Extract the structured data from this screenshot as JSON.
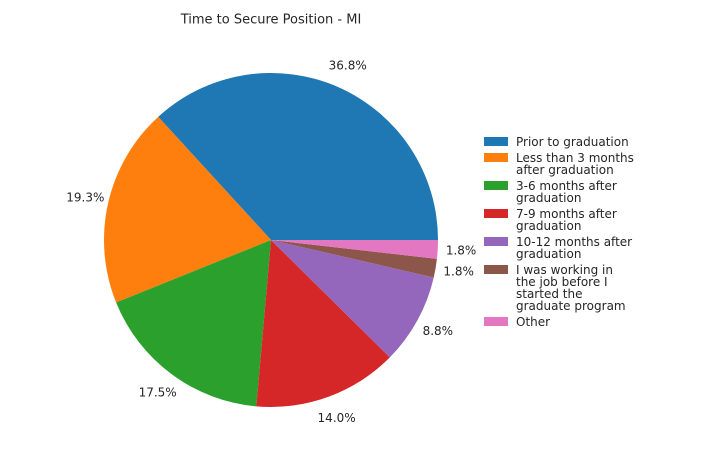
{
  "chart_data": {
    "type": "pie",
    "title": "Time to Secure Position - MI",
    "categories": [
      "Prior to graduation",
      "Less than 3 months after graduation",
      "3-6 months after graduation",
      "7-9 months after graduation",
      "10-12 months after graduation",
      "I was working in the job before I started the graduate program",
      "Other"
    ],
    "values": [
      36.8,
      19.3,
      17.5,
      14.0,
      8.8,
      1.8,
      1.8
    ],
    "value_labels": [
      "36.8%",
      "19.3%",
      "17.5%",
      "14.0%",
      "8.8%",
      "1.8%",
      "1.8%"
    ],
    "colors": [
      "#1f77b4",
      "#ff7f0e",
      "#2ca02c",
      "#d62728",
      "#9467bd",
      "#8c564b",
      "#e377c2"
    ],
    "legend": "right"
  }
}
